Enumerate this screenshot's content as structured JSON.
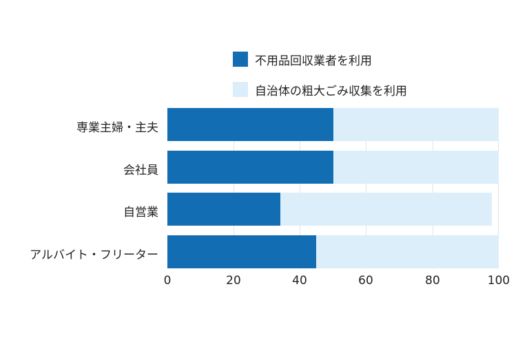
{
  "chart_data": {
    "type": "bar",
    "orientation": "horizontal",
    "stacked": true,
    "title": "",
    "xlabel": "",
    "ylabel": "",
    "categories": [
      "専業主婦・主夫",
      "会社員",
      "自営業",
      "アルバイト・フリーター"
    ],
    "series": [
      {
        "name": "不用品回収業者を利用",
        "color": "#126db3",
        "values": [
          50,
          50,
          34,
          45
        ]
      },
      {
        "name": "自治体の粗大ごみ収集を利用",
        "color": "#dbeef9",
        "values": [
          50,
          50,
          64,
          55
        ]
      }
    ],
    "xlim": [
      0,
      100
    ],
    "xticks": [
      "0",
      "20",
      "40",
      "60",
      "80",
      "100"
    ],
    "grid": true,
    "legend_position": "top"
  },
  "legend": {
    "items": [
      {
        "label": "不用品回収業者を利用",
        "color": "#126db3"
      },
      {
        "label": "自治体の粗大ごみ収集を利用",
        "color": "#dbeef9"
      }
    ]
  }
}
